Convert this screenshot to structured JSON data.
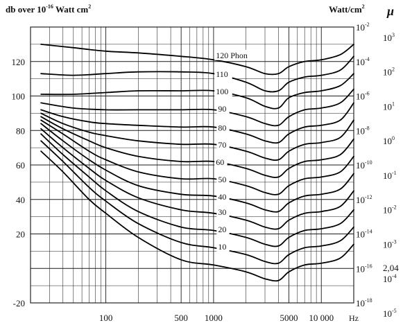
{
  "chart_data": {
    "type": "line",
    "title": "",
    "xlabel": "Hz",
    "ylabel": "db over 10-16 Watt cm2",
    "ylabel_parts": {
      "base": "db over 10",
      "exp": "-16",
      "mid": " Watt cm",
      "exp2": "2"
    },
    "xscale": "log",
    "xlim": [
      20,
      20000
    ],
    "ylim": [
      -20,
      140
    ],
    "x_ticks": [
      {
        "value": 100,
        "label": "100"
      },
      {
        "value": 500,
        "label": "500"
      },
      {
        "value": 1000,
        "label": "1000"
      },
      {
        "value": 5000,
        "label": "5000"
      },
      {
        "value": 10000,
        "label": "10 000"
      }
    ],
    "x_unit": "Hz",
    "y_ticks": [
      {
        "value": 120,
        "label": "120"
      },
      {
        "value": 100,
        "label": "100"
      },
      {
        "value": 80,
        "label": "80"
      },
      {
        "value": 60,
        "label": "60"
      },
      {
        "value": 40,
        "label": "40"
      },
      {
        "value": 20,
        "label": "20"
      },
      {
        "value": -20,
        "label": "-20"
      }
    ],
    "right_axis_intensity": {
      "label": "Watt/cm",
      "label_exp": "2",
      "ticks": [
        {
          "value": 140,
          "exp": "-2"
        },
        {
          "value": 120,
          "exp": "-4"
        },
        {
          "value": 100,
          "exp": "-6"
        },
        {
          "value": 80,
          "exp": "-8"
        },
        {
          "value": 60,
          "exp": "-10"
        },
        {
          "value": 40,
          "exp": "-12"
        },
        {
          "value": 20,
          "exp": "-14"
        },
        {
          "value": 0,
          "exp": "-16"
        },
        {
          "value": -20,
          "exp": "-18"
        }
      ],
      "tick_base": "10"
    },
    "right_axis_pressure": {
      "label": "μ",
      "ticks": [
        {
          "value": 134,
          "base": "10",
          "exp": "3"
        },
        {
          "value": 114,
          "base": "10",
          "exp": "2"
        },
        {
          "value": 94,
          "base": "10",
          "exp": "1"
        },
        {
          "value": 74,
          "base": "10",
          "exp": "0"
        },
        {
          "value": 54,
          "base": "10",
          "exp": "-1"
        },
        {
          "value": 34,
          "base": "10",
          "exp": "-2"
        },
        {
          "value": 14,
          "base": "10",
          "exp": "-3"
        },
        {
          "value": 0.5,
          "base": "2,04",
          "exp": ""
        },
        {
          "value": -6,
          "base": "10",
          "exp": "-4"
        },
        {
          "value": -26,
          "base": "10",
          "exp": "-5"
        }
      ]
    },
    "grid": true,
    "series": [
      {
        "name": "120 Phon",
        "x": [
          25,
          50,
          100,
          200,
          500,
          1000,
          2000,
          3000,
          4000,
          5000,
          7000,
          10000,
          15000,
          20000
        ],
        "y": [
          130,
          128,
          126,
          125,
          123,
          121,
          117,
          113,
          113,
          117,
          120,
          121,
          124,
          130
        ]
      },
      {
        "name": "110",
        "x": [
          25,
          50,
          100,
          200,
          500,
          1000,
          2000,
          3000,
          4000,
          5000,
          7000,
          10000,
          15000,
          20000
        ],
        "y": [
          113,
          112,
          113,
          114,
          114,
          113,
          108,
          103,
          103,
          108,
          111,
          112,
          115,
          123
        ]
      },
      {
        "name": "100",
        "x": [
          25,
          50,
          100,
          200,
          500,
          1000,
          2000,
          3000,
          4000,
          5000,
          7000,
          10000,
          15000,
          20000
        ],
        "y": [
          101,
          101,
          102,
          103,
          103,
          103,
          99,
          94,
          93,
          99,
          102,
          103,
          106,
          113
        ]
      },
      {
        "name": "90",
        "x": [
          25,
          50,
          100,
          200,
          500,
          1000,
          2000,
          3000,
          4000,
          5000,
          7000,
          10000,
          15000,
          20000
        ],
        "y": [
          96,
          93,
          92,
          92,
          92,
          92,
          88,
          84,
          83,
          88,
          92,
          93,
          96,
          104
        ]
      },
      {
        "name": "80",
        "x": [
          25,
          40,
          70,
          100,
          200,
          500,
          1000,
          2000,
          3000,
          4000,
          5000,
          7000,
          10000,
          15000,
          20000
        ],
        "y": [
          92,
          88,
          85,
          84,
          83,
          82,
          82,
          78,
          74,
          73,
          78,
          82,
          83,
          86,
          96
        ]
      },
      {
        "name": "70",
        "x": [
          25,
          40,
          70,
          100,
          200,
          500,
          1000,
          2000,
          3000,
          4000,
          5000,
          7000,
          10000,
          15000,
          20000
        ],
        "y": [
          90,
          84,
          79,
          77,
          74,
          72,
          72,
          68,
          64,
          63,
          68,
          72,
          73,
          76,
          86
        ]
      },
      {
        "name": "60",
        "x": [
          25,
          40,
          70,
          100,
          200,
          500,
          1000,
          2000,
          3000,
          4000,
          5000,
          7000,
          10000,
          15000,
          20000
        ],
        "y": [
          88,
          81,
          74,
          70,
          65,
          62,
          62,
          58,
          54,
          53,
          58,
          62,
          63,
          66,
          75
        ]
      },
      {
        "name": "50",
        "x": [
          25,
          40,
          70,
          100,
          200,
          500,
          1000,
          2000,
          3000,
          4000,
          5000,
          7000,
          10000,
          15000,
          20000
        ],
        "y": [
          86,
          78,
          68,
          63,
          56,
          52,
          52,
          48,
          44,
          43,
          48,
          52,
          53,
          56,
          65
        ]
      },
      {
        "name": "40",
        "x": [
          25,
          40,
          70,
          100,
          200,
          500,
          1000,
          2000,
          3000,
          4000,
          5000,
          7000,
          10000,
          15000,
          20000
        ],
        "y": [
          84,
          74,
          63,
          57,
          48,
          43,
          42,
          38,
          34,
          33,
          38,
          42,
          43,
          46,
          55
        ]
      },
      {
        "name": "30",
        "x": [
          25,
          40,
          70,
          100,
          200,
          500,
          1000,
          2000,
          3000,
          4000,
          5000,
          7000,
          10000,
          15000,
          20000
        ],
        "y": [
          81,
          70,
          58,
          51,
          41,
          34,
          32,
          28,
          24,
          23,
          28,
          32,
          33,
          36,
          45
        ]
      },
      {
        "name": "20",
        "x": [
          25,
          40,
          70,
          100,
          200,
          500,
          1000,
          2000,
          3000,
          4000,
          5000,
          7000,
          10000,
          15000,
          20000
        ],
        "y": [
          78,
          66,
          53,
          45,
          33,
          24,
          22,
          18,
          14,
          13,
          18,
          22,
          23,
          26,
          34
        ]
      },
      {
        "name": "10",
        "x": [
          25,
          40,
          70,
          100,
          200,
          500,
          1000,
          2000,
          3000,
          4000,
          5000,
          7000,
          10000,
          15000,
          20000
        ],
        "y": [
          74,
          62,
          47,
          39,
          26,
          15,
          12,
          8,
          4,
          3,
          8,
          12,
          13,
          16,
          24
        ]
      },
      {
        "name": "",
        "x": [
          25,
          40,
          70,
          100,
          200,
          500,
          1000,
          2000,
          3000,
          4000,
          5000,
          7000,
          10000,
          15000,
          20000
        ],
        "y": [
          68,
          56,
          40,
          32,
          18,
          5,
          2,
          -2,
          -6,
          -7,
          -2,
          2,
          3,
          6,
          14
        ]
      }
    ],
    "curve_labels": [
      {
        "text": "120 Phon",
        "x": 1050,
        "y": 122
      },
      {
        "text": "110",
        "x": 1050,
        "y": 111
      },
      {
        "text": "100",
        "x": 1050,
        "y": 101
      },
      {
        "text": "90",
        "x": 1100,
        "y": 91
      },
      {
        "text": "80",
        "x": 1100,
        "y": 80
      },
      {
        "text": "70",
        "x": 1100,
        "y": 70
      },
      {
        "text": "60",
        "x": 1050,
        "y": 60
      },
      {
        "text": "50",
        "x": 1100,
        "y": 50
      },
      {
        "text": "40",
        "x": 1100,
        "y": 40
      },
      {
        "text": "30",
        "x": 1100,
        "y": 31
      },
      {
        "text": "20",
        "x": 1100,
        "y": 21
      },
      {
        "text": "10",
        "x": 1100,
        "y": 11
      }
    ]
  }
}
